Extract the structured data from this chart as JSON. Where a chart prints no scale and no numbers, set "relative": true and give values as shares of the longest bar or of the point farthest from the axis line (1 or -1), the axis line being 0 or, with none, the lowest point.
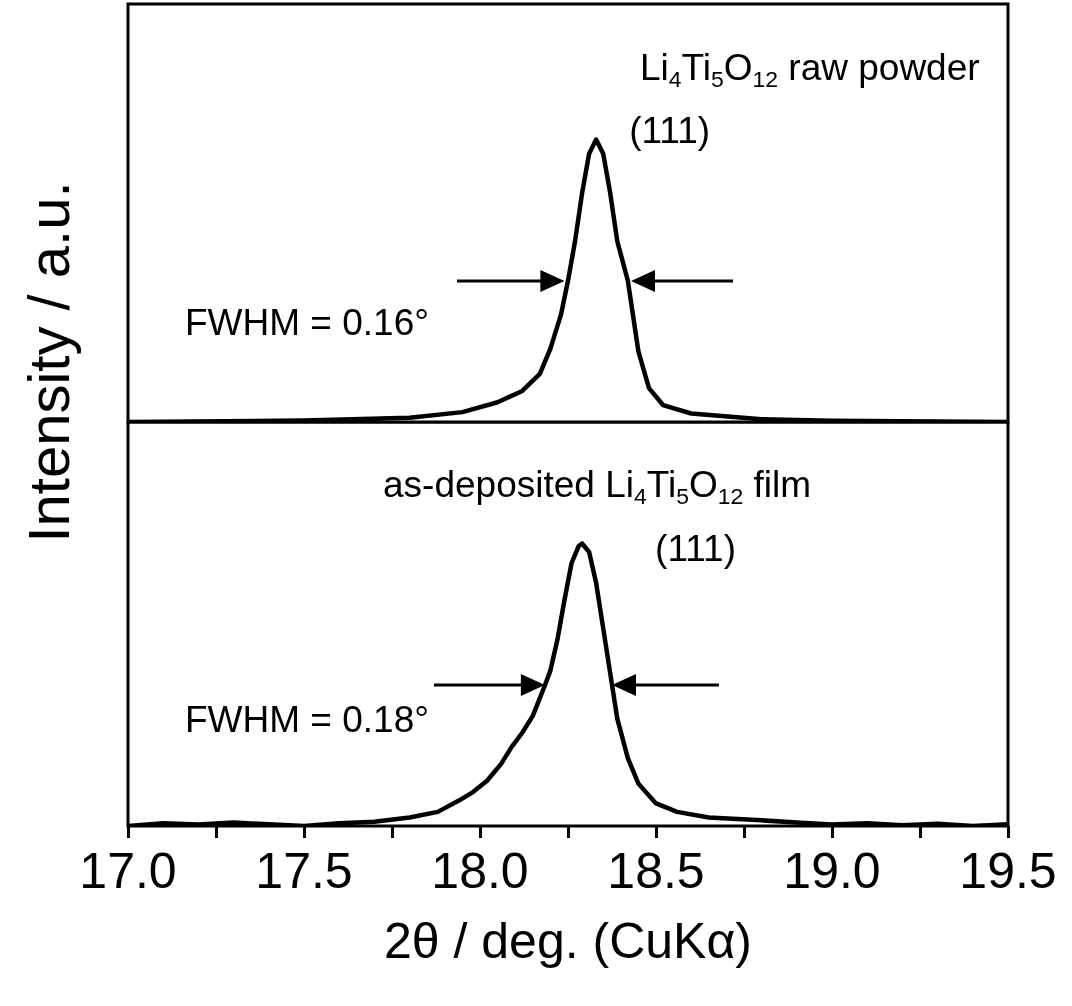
{
  "chart_data": [
    {
      "type": "line",
      "relative": true,
      "ylabel": "Intensity / a.u.",
      "tick_labels": false,
      "marker": "none",
      "xlim": [
        17.0,
        19.5
      ],
      "x": [
        17.0,
        17.5,
        17.8,
        17.95,
        18.05,
        18.12,
        18.17,
        18.2,
        18.23,
        18.25,
        18.27,
        18.29,
        18.31,
        18.33,
        18.35,
        18.37,
        18.39,
        18.42,
        18.45,
        18.48,
        18.52,
        18.6,
        18.8,
        19.0,
        19.5
      ],
      "series": [
        {
          "color": "#000000",
          "values": [
            0.0,
            0.005,
            0.015,
            0.035,
            0.07,
            0.11,
            0.17,
            0.26,
            0.38,
            0.5,
            0.64,
            0.81,
            0.95,
            1.0,
            0.95,
            0.81,
            0.64,
            0.5,
            0.25,
            0.12,
            0.06,
            0.03,
            0.01,
            0.004,
            0.0
          ]
        }
      ],
      "annotations": [
        "Li$_{4}$Ti$_{5}$O$_{12}$ raw powder",
        {
          "text": "(111)",
          "x": 18.33,
          "y": 1
        },
        "FWHM = 0.16°"
      ]
    },
    {
      "type": "line",
      "relative": true,
      "marker": "none",
      "xlabel": "2θ / deg. (CuKα)",
      "xlim": [
        17.0,
        19.5
      ],
      "xticks": [
        {
          "value": 17,
          "label": "17.0"
        },
        {
          "value": 17.25,
          "label": null
        },
        {
          "value": 17.5,
          "label": "17.5"
        },
        {
          "value": 17.75,
          "label": null
        },
        {
          "value": 18,
          "label": "18.0"
        },
        {
          "value": 18.25,
          "label": null
        },
        {
          "value": 18.5,
          "label": "18.5"
        },
        {
          "value": 18.75,
          "label": null
        },
        {
          "value": 19,
          "label": "19.0"
        },
        {
          "value": 19.25,
          "label": null
        },
        {
          "value": 19.5,
          "label": "19.5"
        }
      ],
      "x": [
        17.0,
        17.1,
        17.2,
        17.3,
        17.4,
        17.5,
        17.6,
        17.7,
        17.8,
        17.88,
        17.94,
        17.98,
        18.02,
        18.06,
        18.09,
        18.12,
        18.15,
        18.185,
        18.2,
        18.22,
        18.24,
        18.26,
        18.28,
        18.29,
        18.31,
        18.33,
        18.35,
        18.375,
        18.39,
        18.42,
        18.45,
        18.5,
        18.56,
        18.65,
        18.8,
        18.9,
        19.0,
        19.1,
        19.2,
        19.3,
        19.4,
        19.5
      ],
      "series": [
        {
          "color": "#000000",
          "values": [
            0.0,
            0.01,
            0.005,
            0.012,
            0.006,
            0.0,
            0.01,
            0.015,
            0.03,
            0.05,
            0.09,
            0.12,
            0.16,
            0.22,
            0.28,
            0.33,
            0.39,
            0.5,
            0.55,
            0.66,
            0.8,
            0.93,
            0.99,
            1.0,
            0.97,
            0.86,
            0.7,
            0.5,
            0.38,
            0.24,
            0.15,
            0.08,
            0.05,
            0.03,
            0.02,
            0.012,
            0.005,
            0.01,
            0.003,
            0.008,
            0.0,
            0.006
          ]
        }
      ],
      "annotations": [
        "as-deposited Li$_{4}$Ti$_{5}$O$_{12}$ film",
        {
          "text": "(111)",
          "x": 18.29,
          "y": 1
        },
        "FWHM = 0.18°"
      ]
    }
  ]
}
